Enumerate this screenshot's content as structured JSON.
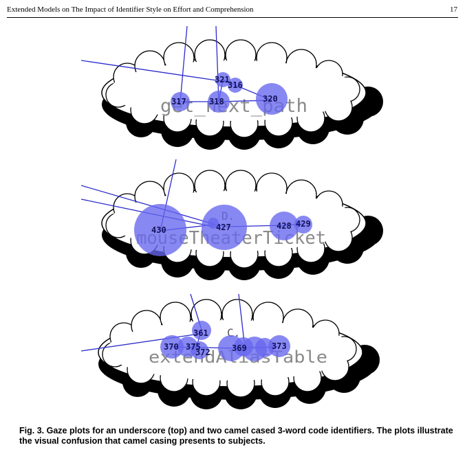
{
  "header": {
    "title": "Extended Models on The Impact of Identifier Style on Effort and Comprehension",
    "page_number": "17"
  },
  "figure": {
    "plots": [
      {
        "identifier": "get_next_path",
        "style": "underscore",
        "fixations": [
          "317",
          "318",
          "320",
          "321",
          "316"
        ],
        "stray_text": ""
      },
      {
        "identifier": "mouseTheaterTicket",
        "style": "camel",
        "fixations": [
          "430",
          "427",
          "428",
          "429"
        ],
        "stray_text": "D."
      },
      {
        "identifier": "extendAliasTable",
        "style": "camel",
        "fixations": [
          "361",
          "370",
          "375",
          "372",
          "369",
          "373"
        ],
        "stray_text": "C."
      }
    ],
    "colors": {
      "fixation_fill": "#6666ee",
      "saccade_line": "#2a2acc",
      "cloud_fill": "#ffffff",
      "cloud_shadow": "#000000"
    }
  },
  "caption": {
    "label": "Fig. 3.",
    "text": "Gaze plots for an underscore (top) and two camel cased 3-word code identifiers. The plots illustrate the visual confusion that camel casing presents to subjects."
  }
}
